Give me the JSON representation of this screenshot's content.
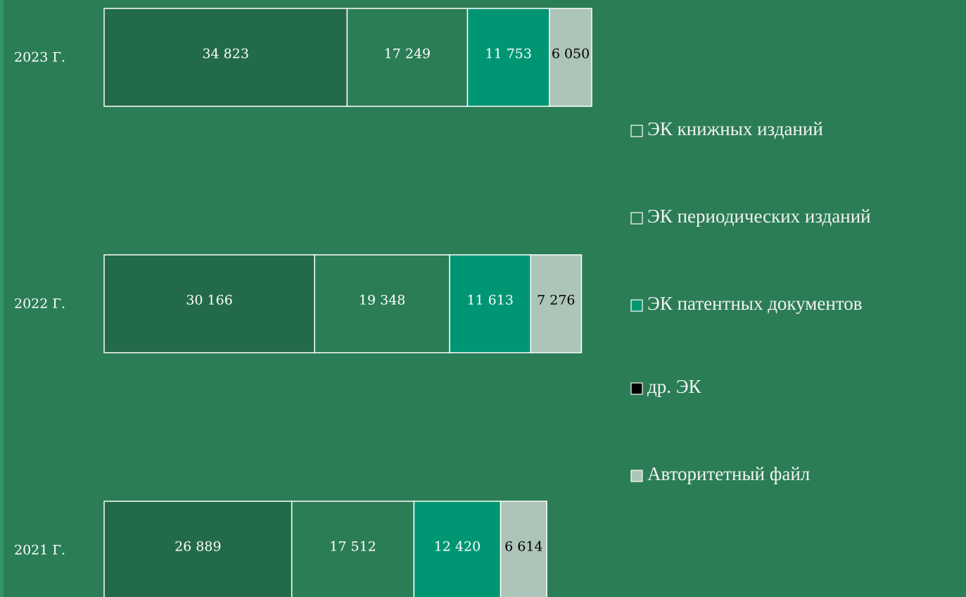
{
  "chart_data": {
    "type": "stacked-bar-horizontal",
    "categories": [
      "2023 Г.",
      "2022 Г.",
      "2021 Г."
    ],
    "series": [
      {
        "name": "ЭК книжных изданий",
        "color": "#236b48",
        "legend_color": "#2b7d55",
        "label_color": "#ffffff",
        "values": [
          34823,
          30166,
          26889
        ],
        "value_labels": [
          "34 823",
          "30 166",
          "26 889"
        ]
      },
      {
        "name": "ЭК периодических изданий",
        "color": "#2b7d55",
        "legend_color": "#2b7d55",
        "label_color": "#ffffff",
        "values": [
          17249,
          19348,
          17512
        ],
        "value_labels": [
          "17 249",
          "19 348",
          "17 512"
        ]
      },
      {
        "name": "ЭК патентных документов",
        "color": "#009673",
        "legend_color": "#009673",
        "label_color": "#ffffff",
        "values": [
          11753,
          11613,
          12420
        ],
        "value_labels": [
          "11 753",
          "11 613",
          "12 420"
        ]
      },
      {
        "name": "др. ЭК",
        "color": "#000000",
        "legend_color": "#000000",
        "label_color": "#000000",
        "values": [
          null,
          null,
          null
        ]
      },
      {
        "name": "Авторитетный файл",
        "color": "#adc4b8",
        "legend_color": "#adc4b8",
        "label_color": "#000000",
        "values": [
          6050,
          7276,
          6614
        ],
        "value_labels": [
          "6 050",
          "7 276",
          "6 614"
        ]
      }
    ]
  }
}
